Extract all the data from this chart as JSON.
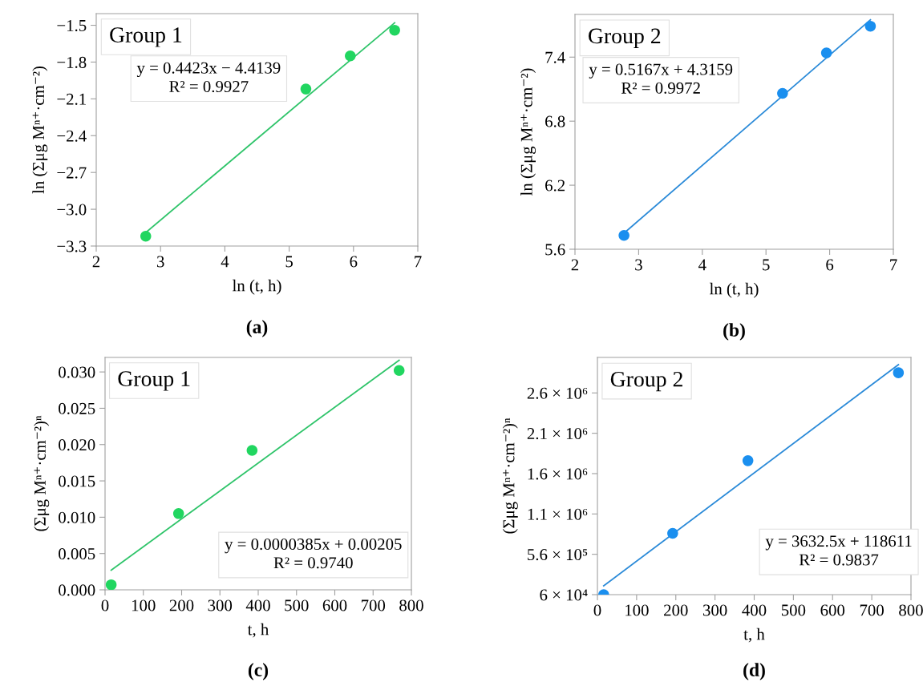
{
  "chart_data": [
    {
      "type": "scatter",
      "xlabel": "ln (t, h)",
      "ylabel": "ln (Σμg Mⁿ⁺·cm⁻²)",
      "xlim": [
        2,
        7
      ],
      "xticks": [
        2,
        3,
        4,
        5,
        6,
        7
      ],
      "ylim": [
        -3.3,
        -1.405
      ],
      "yticks": [
        {
          "value": -3.3,
          "label": "−3.3"
        },
        {
          "value": -3.0,
          "label": "−3.0"
        },
        {
          "value": -2.7,
          "label": "−2.7"
        },
        {
          "value": -2.4,
          "label": "−2.4"
        },
        {
          "value": -2.1,
          "label": "−2.1"
        },
        {
          "value": -1.8,
          "label": "−1.8"
        },
        {
          "value": -1.5,
          "label": "−1.5"
        }
      ],
      "grid": false,
      "series": [
        {
          "color": "#21d660",
          "marker": "circle",
          "x": [
            2.77,
            5.26,
            5.95,
            6.64
          ],
          "values": [
            -3.22,
            -2.02,
            -1.75,
            -1.54
          ]
        },
        {
          "type": "line",
          "color": "#2fc46a",
          "x": [
            2.77,
            6.64
          ],
          "values": [
            -3.19,
            -1.48
          ]
        }
      ],
      "annotations": [
        "Group 1",
        "y = 0.4423x − 4.4139",
        "R² = 0.9927",
        "(a)"
      ]
    },
    {
      "type": "scatter",
      "xlabel": "ln (t, h)",
      "ylabel": "ln (Σμg Mⁿ⁺·cm⁻²)",
      "xlim": [
        2,
        7
      ],
      "xticks": [
        2,
        3,
        4,
        5,
        6,
        7
      ],
      "ylim": [
        5.6,
        7.8
      ],
      "yticks": [
        5.6,
        6.2,
        6.8,
        7.4
      ],
      "grid": false,
      "series": [
        {
          "color": "#1a8fef",
          "marker": "circle",
          "x": [
            2.77,
            5.26,
            5.95,
            6.64
          ],
          "values": [
            5.73,
            7.06,
            7.44,
            7.69
          ]
        },
        {
          "type": "line",
          "color": "#2a8ad8",
          "x": [
            2.77,
            6.64
          ],
          "values": [
            5.75,
            7.75
          ]
        }
      ],
      "annotations": [
        "Group 2",
        "y = 0.5167x + 4.3159",
        "R² = 0.9972",
        "(b)"
      ]
    },
    {
      "type": "scatter",
      "xlabel": "t, h",
      "ylabel": "(Σμg Mⁿ⁺·cm⁻²)ⁿ",
      "xlim": [
        0,
        800
      ],
      "xticks": [
        0,
        100,
        200,
        300,
        400,
        500,
        600,
        700,
        800
      ],
      "ylim": [
        0,
        0.032
      ],
      "yticks": [
        {
          "value": 0,
          "label": "0.000"
        },
        {
          "value": 0.005,
          "label": "0.005"
        },
        {
          "value": 0.01,
          "label": "0.010"
        },
        {
          "value": 0.015,
          "label": "0.015"
        },
        {
          "value": 0.02,
          "label": "0.020"
        },
        {
          "value": 0.025,
          "label": "0.025"
        },
        {
          "value": 0.03,
          "label": "0.030"
        }
      ],
      "grid": false,
      "series": [
        {
          "color": "#21d660",
          "marker": "circle",
          "x": [
            16,
            192,
            384,
            768
          ],
          "values": [
            0.0007,
            0.0105,
            0.0192,
            0.0302
          ]
        },
        {
          "type": "line",
          "color": "#2fc46a",
          "x": [
            16,
            768
          ],
          "values": [
            0.0027,
            0.0316
          ]
        }
      ],
      "annotations": [
        "Group 1",
        "y = 0.0000385x + 0.00205",
        "R² = 0.9740",
        "(c)"
      ]
    },
    {
      "type": "scatter",
      "xlabel": "t, h",
      "ylabel": "(Σμg Mⁿ⁺·cm⁻²)ⁿ",
      "xlim": [
        0,
        800
      ],
      "xticks": [
        0,
        100,
        200,
        300,
        400,
        500,
        600,
        700,
        800
      ],
      "ylim": [
        60000,
        3000000
      ],
      "yticks": [
        {
          "value": 60000,
          "label": "6 × 10⁴"
        },
        {
          "value": 560000,
          "label": "5.6 × 10⁵"
        },
        {
          "value": 1060000,
          "label": "1.1 × 10⁶"
        },
        {
          "value": 1560000,
          "label": "1.6 × 10⁶"
        },
        {
          "value": 2060000,
          "label": "2.1 × 10⁶"
        },
        {
          "value": 2560000,
          "label": "2.6 × 10⁶"
        }
      ],
      "grid": false,
      "series": [
        {
          "color": "#1a8fef",
          "marker": "circle",
          "x": [
            16,
            192,
            384,
            768
          ],
          "values": [
            60000,
            820000,
            1720000,
            2810000
          ]
        },
        {
          "type": "line",
          "color": "#2a8ad8",
          "x": [
            16,
            768
          ],
          "values": [
            170000,
            2910000
          ]
        }
      ],
      "annotations": [
        "Group 2",
        "y = 3632.5x + 118611",
        "R² = 0.9837",
        "(d)"
      ]
    }
  ]
}
